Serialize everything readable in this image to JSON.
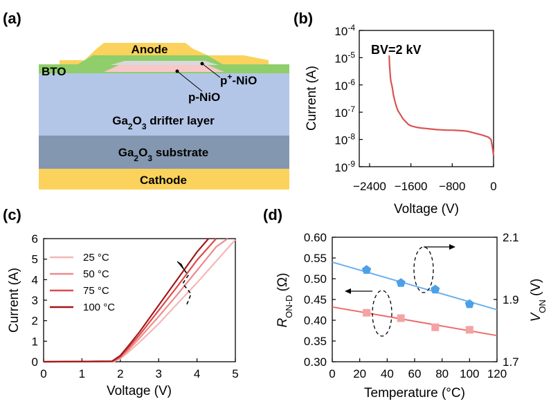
{
  "panels": {
    "a": {
      "label": "(a)",
      "layers": {
        "anode": "Anode",
        "bto": "BTO",
        "p_plus_nio_prefix": "p",
        "p_plus_nio_sup": "+",
        "p_plus_nio_suffix": "-NiO",
        "p_nio": "p-NiO",
        "drifter_pre": "Ga",
        "drifter_sub1": "2",
        "drifter_mid": "O",
        "drifter_sub2": "3",
        "drifter_post": " drifter layer",
        "substrate_pre": "Ga",
        "substrate_sub1": "2",
        "substrate_mid": "O",
        "substrate_sub2": "3",
        "substrate_post": " substrate",
        "cathode": "Cathode"
      },
      "colors": {
        "anode": "#fbd25b",
        "bto": "#8fce6b",
        "p_plus_nio": "#d9d9d9",
        "p_nio": "#f8c8c8",
        "drifter": "#b4c6e7",
        "substrate": "#8497b0",
        "cathode": "#fbd25b"
      }
    },
    "b": {
      "label": "(b)"
    },
    "c": {
      "label": "(c)"
    },
    "d": {
      "label": "(d)"
    }
  },
  "chart_data": [
    {
      "panel": "b",
      "type": "line",
      "xlabel": "Voltage (V)",
      "ylabel": "Current (A)",
      "xlim": [
        -2600,
        0
      ],
      "ylim_log10": [
        -9,
        -4
      ],
      "log_y": true,
      "x_ticks": [
        "-2400",
        "-1600",
        "-800",
        "0"
      ],
      "x_tick_values": [
        -2400,
        -1600,
        -800,
        0
      ],
      "y_ticks_base": "10",
      "y_ticks_exp": [
        "-9",
        "-8",
        "-7",
        "-6",
        "-5",
        "-4"
      ],
      "y_tick_values_log10": [
        -9,
        -8,
        -7,
        -6,
        -5,
        -4
      ],
      "annotation": "BV=2 kV",
      "color": "#d9534f",
      "series": [
        {
          "x": [
            -2020,
            -2015,
            -2005,
            -1995,
            -1985,
            -1970,
            -1955,
            -1940,
            -1910,
            -1880,
            -1850,
            -1800,
            -1750,
            -1700,
            -1650,
            -1600,
            -1500,
            -1400,
            -1300,
            -1200,
            -1100,
            -1000,
            -900,
            -800,
            -700,
            -600,
            -500,
            -400,
            -300,
            -200,
            -100,
            -50,
            -20,
            0
          ],
          "y_log10": [
            -4.92,
            -5.2,
            -5.5,
            -5.75,
            -5.9,
            -6.0,
            -6.15,
            -6.35,
            -6.6,
            -6.8,
            -6.95,
            -7.1,
            -7.25,
            -7.35,
            -7.45,
            -7.5,
            -7.55,
            -7.58,
            -7.6,
            -7.62,
            -7.64,
            -7.65,
            -7.66,
            -7.66,
            -7.67,
            -7.68,
            -7.7,
            -7.75,
            -7.8,
            -7.85,
            -7.92,
            -8.0,
            -8.3,
            -8.6
          ]
        }
      ]
    },
    {
      "panel": "c",
      "type": "line",
      "xlabel": "Voltage (V)",
      "ylabel": "Current (A)",
      "xlim": [
        0,
        5
      ],
      "ylim": [
        0,
        6
      ],
      "x_ticks": [
        "0",
        "1",
        "2",
        "3",
        "4",
        "5"
      ],
      "x_tick_values": [
        0,
        1,
        2,
        3,
        4,
        5
      ],
      "y_ticks": [
        "0",
        "1",
        "2",
        "3",
        "4",
        "5",
        "6"
      ],
      "y_tick_values": [
        0,
        1,
        2,
        3,
        4,
        5,
        6
      ],
      "legend_position": "top-left",
      "series": [
        {
          "name": "25 °C",
          "color": "#f4b6b6",
          "x": [
            0,
            1.85,
            2.0,
            2.2,
            2.5,
            3.0,
            3.5,
            4.0,
            4.5,
            5.0
          ],
          "y": [
            0,
            0.02,
            0.15,
            0.45,
            0.95,
            1.85,
            2.85,
            3.85,
            4.9,
            5.95
          ]
        },
        {
          "name": "50 °C",
          "color": "#ee8a8a",
          "x": [
            0,
            1.82,
            2.0,
            2.2,
            2.5,
            3.0,
            3.5,
            4.0,
            4.5,
            4.8
          ],
          "y": [
            0,
            0.02,
            0.2,
            0.55,
            1.15,
            2.2,
            3.3,
            4.45,
            5.6,
            6.0
          ]
        },
        {
          "name": "75 °C",
          "color": "#dd4a4a",
          "x": [
            0,
            1.8,
            2.0,
            2.2,
            2.5,
            3.0,
            3.5,
            4.0,
            4.5
          ],
          "y": [
            0,
            0.02,
            0.25,
            0.65,
            1.3,
            2.5,
            3.7,
            4.95,
            6.0
          ]
        },
        {
          "name": "100 °C",
          "color": "#a01818",
          "x": [
            0,
            1.78,
            2.0,
            2.2,
            2.5,
            3.0,
            3.5,
            4.0,
            4.3
          ],
          "y": [
            0,
            0.02,
            0.3,
            0.75,
            1.45,
            2.75,
            4.05,
            5.35,
            6.0
          ]
        }
      ]
    },
    {
      "panel": "d",
      "type": "scatter",
      "xlabel": "Temperature (°C)",
      "ylabel_left_main": "R",
      "ylabel_left_sub": "ON-D",
      "ylabel_left_unit": " (Ω)",
      "ylabel_right_main": "V",
      "ylabel_right_sub": "ON",
      "ylabel_right_unit": " (V)",
      "xlim": [
        0,
        120
      ],
      "ylim_left": [
        0.3,
        0.6
      ],
      "ylim_right": [
        1.7,
        2.1
      ],
      "x_ticks": [
        "0",
        "20",
        "40",
        "60",
        "80",
        "100",
        "120"
      ],
      "x_tick_values": [
        0,
        20,
        40,
        60,
        80,
        100,
        120
      ],
      "y_left_ticks": [
        "0.30",
        "0.35",
        "0.40",
        "0.45",
        "0.50",
        "0.55",
        "0.60"
      ],
      "y_left_tick_values": [
        0.3,
        0.35,
        0.4,
        0.45,
        0.5,
        0.55,
        0.6
      ],
      "y_right_ticks": [
        "1.7",
        "1.9",
        "2.1"
      ],
      "y_right_tick_values": [
        1.7,
        1.9,
        2.1
      ],
      "series": [
        {
          "axis": "left",
          "marker": "square",
          "color": "#f4a3a3",
          "line_color": "#ee6b6b",
          "x": [
            25,
            50,
            75,
            100
          ],
          "y": [
            0.418,
            0.405,
            0.383,
            0.377
          ],
          "fit": {
            "x": [
              0,
              120
            ],
            "y": [
              0.432,
              0.363
            ]
          }
        },
        {
          "axis": "right",
          "marker": "pentagon",
          "color": "#4d9fe8",
          "line_color": "#6ab0ef",
          "x": [
            25,
            50,
            75,
            100
          ],
          "y": [
            1.995,
            1.953,
            1.932,
            1.885
          ],
          "fit": {
            "x": [
              0,
              120
            ],
            "y": [
              2.02,
              1.867
            ]
          }
        }
      ]
    }
  ]
}
